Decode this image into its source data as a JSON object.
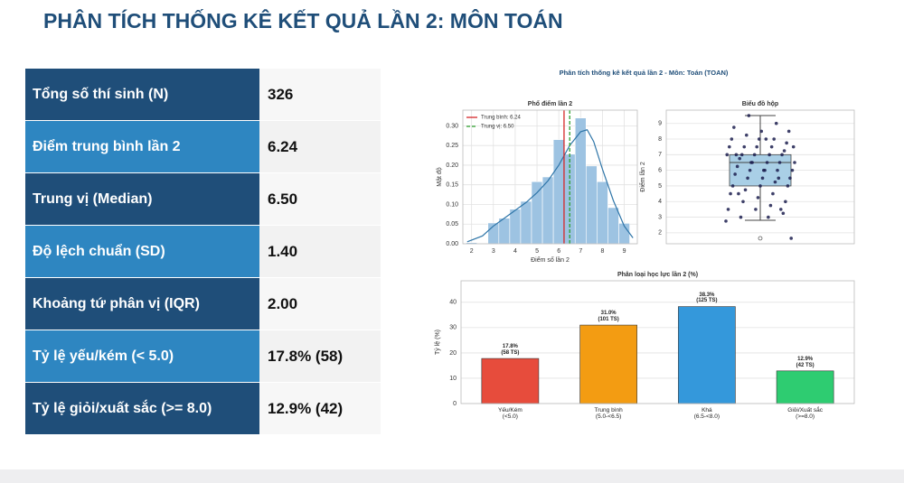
{
  "header": {
    "title": "PHÂN TÍCH THỐNG KÊ KẾT QUẢ LẦN 2: MÔN TOÁN"
  },
  "table": {
    "rows": [
      [
        "Tổng số thí sinh (N)",
        "326"
      ],
      [
        "Điểm trung bình lần 2",
        "6.24"
      ],
      [
        "Trung vị (Median)",
        "6.50"
      ],
      [
        "Độ lệch chuẩn (SD)",
        "1.40"
      ],
      [
        "Khoảng tứ phân vị (IQR)",
        "2.00"
      ],
      [
        "Tỷ lệ yếu/kém (< 5.0)",
        "17.8% (58)"
      ],
      [
        "Tỷ lệ giỏi/xuất sắc (>= 8.0)",
        "12.9% (42)"
      ]
    ]
  },
  "figure": {
    "title": "Phân tích thống kê kết quả lần 2 - Môn: Toán (TOAN)"
  },
  "chart_data": [
    {
      "type": "histogram",
      "title": "Phổ điểm lần 2",
      "xlabel": "Điểm số lần 2",
      "ylabel": "Mật độ",
      "bins": [
        1.75,
        2.25,
        2.75,
        3.25,
        3.75,
        4.25,
        4.75,
        5.25,
        5.75,
        6.25,
        6.75,
        7.25,
        7.75,
        8.25,
        8.75,
        9.25
      ],
      "values": [
        0.003,
        0,
        0.053,
        0.065,
        0.088,
        0.108,
        0.158,
        0.17,
        0.265,
        0.228,
        0.32,
        0.198,
        0.158,
        0.092,
        0.052
      ],
      "color": "#9dc3e2",
      "density": {
        "x": [
          1.8,
          2.5,
          3,
          3.5,
          4,
          4.5,
          5,
          5.5,
          6,
          6.5,
          7,
          7.3,
          7.6,
          8,
          8.5,
          9,
          9.4
        ],
        "values": [
          0.005,
          0.02,
          0.045,
          0.065,
          0.085,
          0.105,
          0.13,
          0.16,
          0.2,
          0.25,
          0.285,
          0.29,
          0.26,
          0.19,
          0.11,
          0.045,
          0.015
        ],
        "color": "#2e75a8"
      },
      "reference_lines": [
        {
          "name": "Trung bình: 6.24",
          "value": 6.24,
          "color": "#d62728",
          "style": "solid"
        },
        {
          "name": "Trung vị: 6.50",
          "value": 6.5,
          "color": "#2ca02c",
          "style": "dashed"
        }
      ],
      "legend": "upper left",
      "grid": true,
      "xlim": [
        1.6,
        9.6
      ],
      "xticks": [
        2,
        3,
        4,
        5,
        6,
        7,
        8,
        9
      ],
      "ylim": [
        0,
        0.34
      ],
      "yticks": [
        {
          "value": 0,
          "label": "0.00"
        },
        0.05,
        {
          "value": 0.1,
          "label": "0.10"
        },
        0.15,
        {
          "value": 0.2,
          "label": "0.20"
        },
        0.25,
        {
          "value": 0.3,
          "label": "0.30"
        }
      ]
    },
    {
      "type": "box",
      "title": "Biểu đồ hộp",
      "ylabel": "Điểm lần 2",
      "box": {
        "whisker_low": 2.8,
        "q1": 5.0,
        "median": 6.5,
        "q3": 7.0,
        "whisker_high": 9.5
      },
      "outliers": [
        1.65
      ],
      "points": [
        2.75,
        3,
        3,
        3.25,
        3.5,
        3.5,
        3.75,
        4,
        4,
        4.25,
        4.5,
        4.5,
        4.75,
        5,
        5,
        5,
        5.25,
        5.5,
        5.5,
        5.5,
        5.75,
        6,
        6,
        6,
        6,
        6.25,
        6.5,
        6.5,
        6.5,
        6.5,
        6.75,
        7,
        7,
        7,
        7,
        7,
        7.25,
        7.5,
        7.5,
        7.5,
        7.5,
        7.75,
        8,
        8,
        8,
        8.25,
        8.5,
        8.5,
        8.75,
        9,
        9.5,
        1.65,
        6,
        7,
        5.5,
        6.5,
        7.5,
        8,
        4.5,
        3.5
      ],
      "color": "#a9cfe6",
      "point_color": "#1c1f4f",
      "grid": true,
      "ylim": [
        1.3,
        9.85
      ],
      "yticks": [
        2,
        3,
        4,
        5,
        6,
        7,
        8,
        9
      ]
    },
    {
      "type": "bar",
      "title": "Phân loại học lực lần 2 (%)",
      "ylabel": "Tỷ lệ (%)",
      "categories": [
        "Yếu/Kém\n(<5.0)",
        "Trung bình\n(5.0-<6.5)",
        "Khá\n(6.5-<8.0)",
        "Giỏi/Xuất sắc\n(>=8.0)"
      ],
      "values": [
        17.8,
        31.0,
        38.3,
        12.9
      ],
      "value_labels": [
        "17.8%\n(58 TS)",
        "31.0%\n(101 TS)",
        "38.3%\n(125 TS)",
        "12.9%\n(42 TS)"
      ],
      "colors": [
        "#e74c3c",
        "#f39c12",
        "#3498db",
        "#2ecc71"
      ],
      "grid": true,
      "ylim": [
        0,
        48.5
      ],
      "yticks": [
        0,
        10,
        20,
        30,
        40
      ]
    }
  ]
}
